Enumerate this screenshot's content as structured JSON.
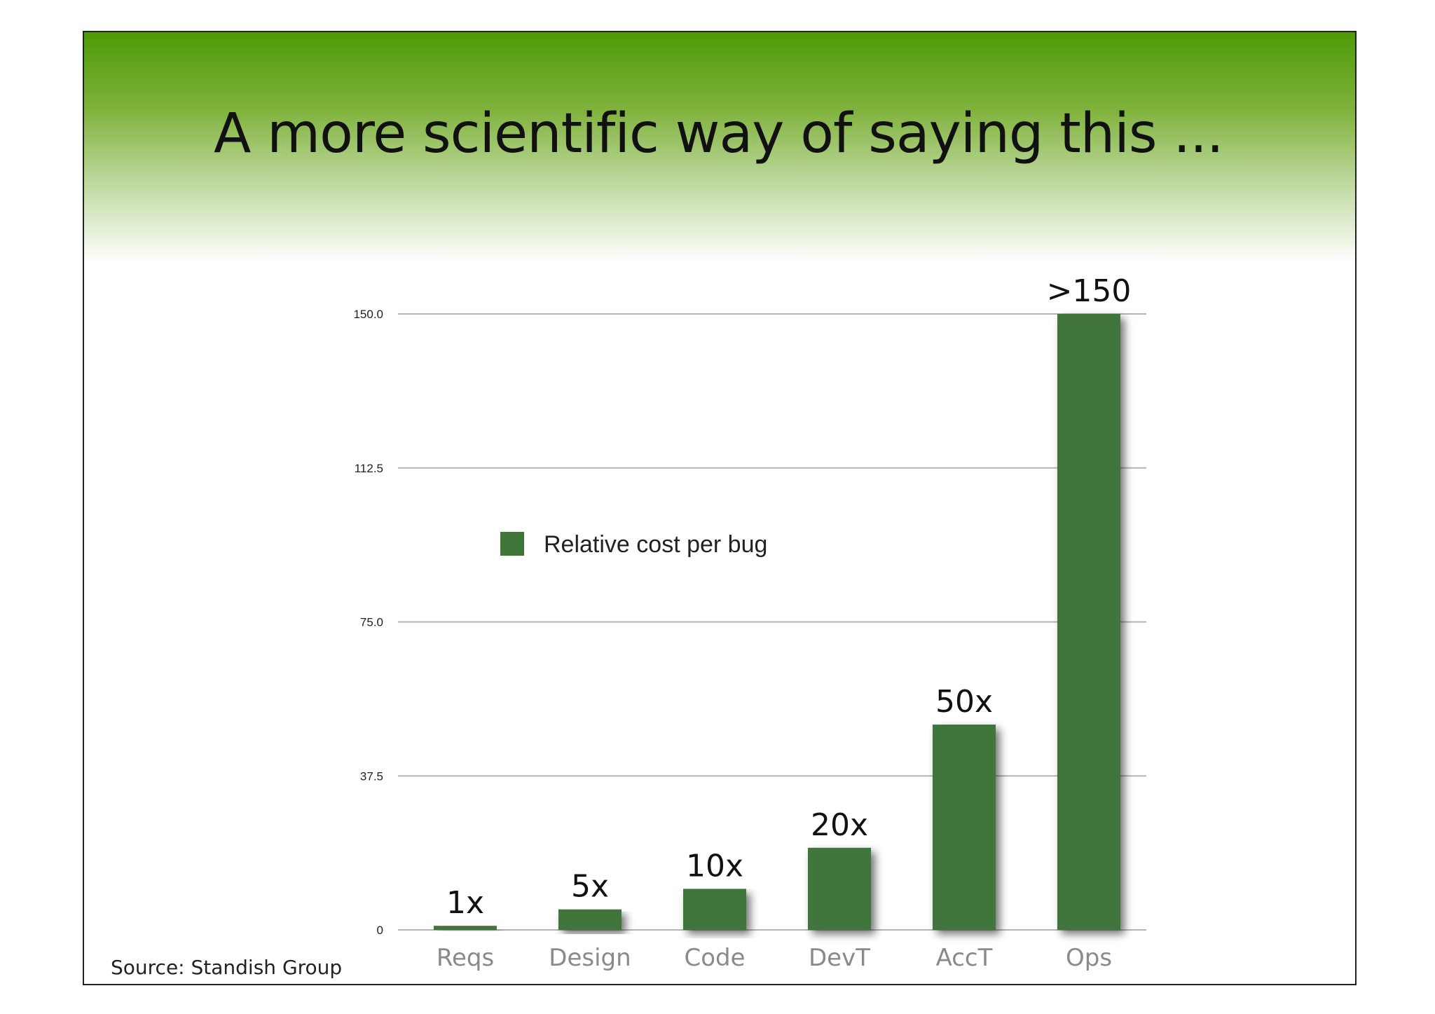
{
  "slide": {
    "title": "A more scientific way of saying this ...",
    "source": "Source: Standish Group"
  },
  "colors": {
    "bar": "#41763a",
    "header_gradient_top": "#4e9a06",
    "grid": "#b5b5b5"
  },
  "chart_data": {
    "type": "bar",
    "categories": [
      "Reqs",
      "Design",
      "Code",
      "DevT",
      "AccT",
      "Ops"
    ],
    "series": [
      {
        "name": "Relative cost per bug",
        "values": [
          1,
          5,
          10,
          20,
          50,
          150
        ],
        "data_labels": [
          "1x",
          "5x",
          "10x",
          "20x",
          "50x",
          ">150"
        ]
      }
    ],
    "yticks": [
      "0",
      "37.5",
      "75.0",
      "112.5",
      "150.0"
    ],
    "ytick_values": [
      0,
      37.5,
      75,
      112.5,
      150
    ],
    "ylim": [
      0,
      150
    ],
    "grid": true,
    "legend_position": "top-left"
  }
}
